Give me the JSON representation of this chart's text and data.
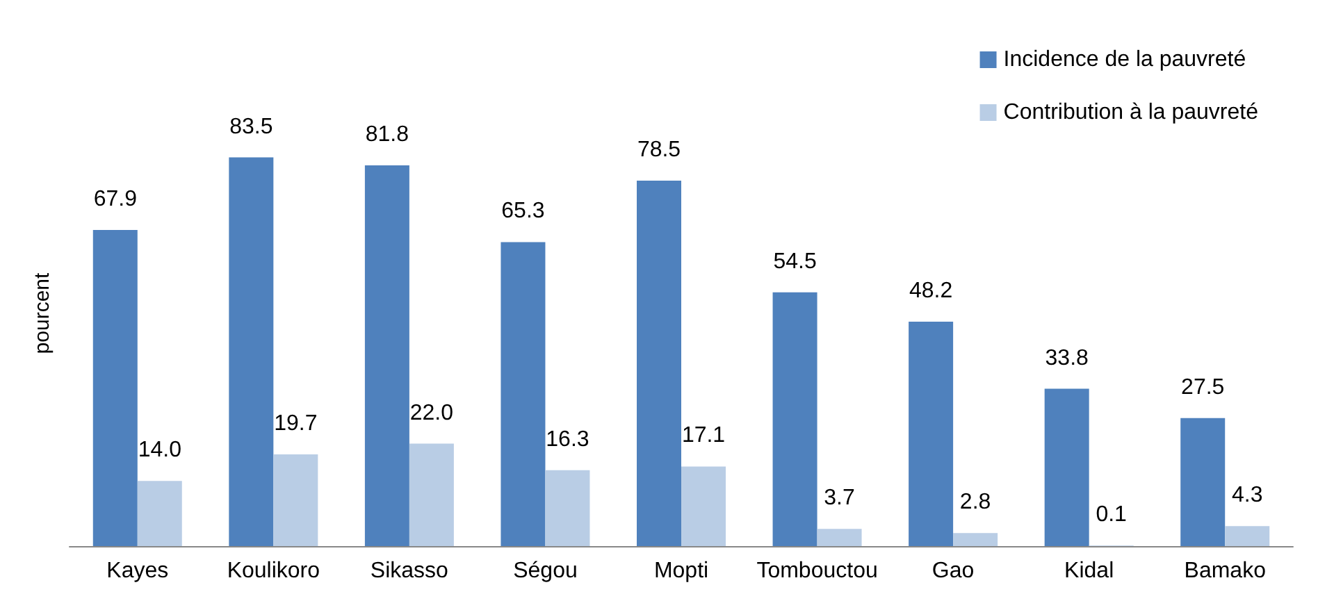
{
  "chart_data": {
    "type": "bar",
    "ylabel": "pourcent",
    "categories": [
      "Kayes",
      "Koulikoro",
      "Sikasso",
      "Ségou",
      "Mopti",
      "Tombouctou",
      "Gao",
      "Kidal",
      "Bamako"
    ],
    "series": [
      {
        "name": "Incidence de la pauvreté",
        "color": "#4f81bd",
        "values": [
          67.9,
          83.5,
          81.8,
          65.3,
          78.5,
          54.5,
          48.2,
          33.8,
          27.5
        ],
        "value_labels": [
          "67.9",
          "83.5",
          "81.8",
          "65.3",
          "78.5",
          "54.5",
          "48.2",
          "33.8",
          "27.5"
        ]
      },
      {
        "name": "Contribution à la pauvreté",
        "color": "#b9cde5",
        "values": [
          14.0,
          19.7,
          22.0,
          16.3,
          17.1,
          3.7,
          2.8,
          0.1,
          4.3
        ],
        "value_labels": [
          "14.0",
          "19.7",
          "22.0",
          "16.3",
          "17.1",
          "3.7",
          "2.8",
          "0.1",
          "4.3"
        ]
      }
    ],
    "legend": "top right",
    "grid": false
  }
}
